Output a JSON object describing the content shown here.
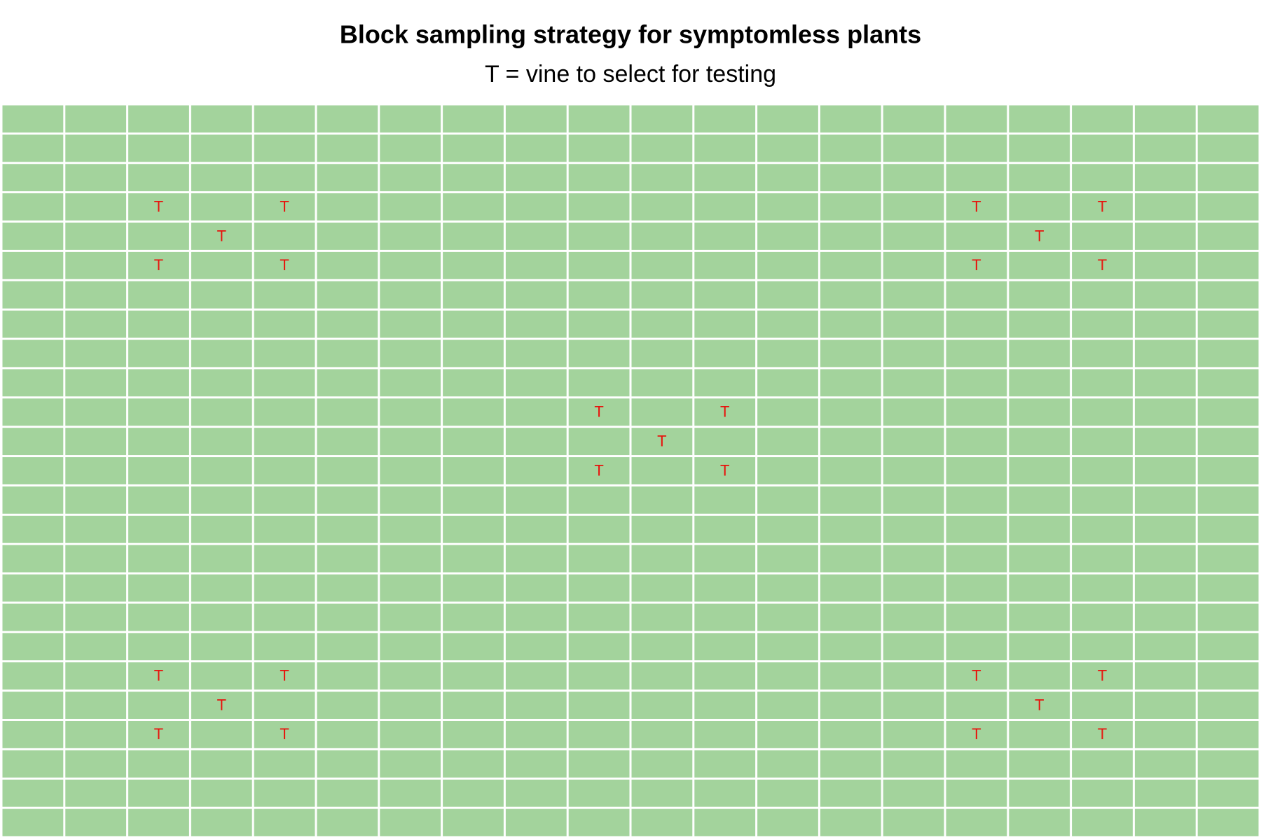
{
  "header": {
    "title": "Block sampling strategy for symptomless plants",
    "subtitle": "T = vine to select for testing"
  },
  "grid": {
    "rows": [
      [
        null,
        null,
        null,
        null,
        null,
        null,
        null,
        null,
        null,
        null,
        null,
        null,
        null,
        null,
        null,
        null,
        null,
        null,
        null,
        null
      ],
      [
        null,
        null,
        null,
        null,
        null,
        null,
        null,
        null,
        null,
        null,
        null,
        null,
        null,
        null,
        null,
        null,
        null,
        null,
        null,
        null
      ],
      [
        null,
        null,
        null,
        null,
        null,
        null,
        null,
        null,
        null,
        null,
        null,
        null,
        null,
        null,
        null,
        null,
        null,
        null,
        null,
        null
      ],
      [
        null,
        null,
        "T",
        null,
        "T",
        null,
        null,
        null,
        null,
        null,
        null,
        null,
        null,
        null,
        null,
        "T",
        null,
        "T",
        null,
        null
      ],
      [
        null,
        null,
        null,
        "T",
        null,
        null,
        null,
        null,
        null,
        null,
        null,
        null,
        null,
        null,
        null,
        null,
        "T",
        null,
        null,
        null
      ],
      [
        null,
        null,
        "T",
        null,
        "T",
        null,
        null,
        null,
        null,
        null,
        null,
        null,
        null,
        null,
        null,
        "T",
        null,
        "T",
        null,
        null
      ],
      [
        null,
        null,
        null,
        null,
        null,
        null,
        null,
        null,
        null,
        null,
        null,
        null,
        null,
        null,
        null,
        null,
        null,
        null,
        null,
        null
      ],
      [
        null,
        null,
        null,
        null,
        null,
        null,
        null,
        null,
        null,
        null,
        null,
        null,
        null,
        null,
        null,
        null,
        null,
        null,
        null,
        null
      ],
      [
        null,
        null,
        null,
        null,
        null,
        null,
        null,
        null,
        null,
        null,
        null,
        null,
        null,
        null,
        null,
        null,
        null,
        null,
        null,
        null
      ],
      [
        null,
        null,
        null,
        null,
        null,
        null,
        null,
        null,
        null,
        null,
        null,
        null,
        null,
        null,
        null,
        null,
        null,
        null,
        null,
        null
      ],
      [
        null,
        null,
        null,
        null,
        null,
        null,
        null,
        null,
        null,
        "T",
        null,
        "T",
        null,
        null,
        null,
        null,
        null,
        null,
        null,
        null
      ],
      [
        null,
        null,
        null,
        null,
        null,
        null,
        null,
        null,
        null,
        null,
        "T",
        null,
        null,
        null,
        null,
        null,
        null,
        null,
        null,
        null
      ],
      [
        null,
        null,
        null,
        null,
        null,
        null,
        null,
        null,
        null,
        "T",
        null,
        "T",
        null,
        null,
        null,
        null,
        null,
        null,
        null,
        null
      ],
      [
        null,
        null,
        null,
        null,
        null,
        null,
        null,
        null,
        null,
        null,
        null,
        null,
        null,
        null,
        null,
        null,
        null,
        null,
        null,
        null
      ],
      [
        null,
        null,
        null,
        null,
        null,
        null,
        null,
        null,
        null,
        null,
        null,
        null,
        null,
        null,
        null,
        null,
        null,
        null,
        null,
        null
      ],
      [
        null,
        null,
        null,
        null,
        null,
        null,
        null,
        null,
        null,
        null,
        null,
        null,
        null,
        null,
        null,
        null,
        null,
        null,
        null,
        null
      ],
      [
        null,
        null,
        null,
        null,
        null,
        null,
        null,
        null,
        null,
        null,
        null,
        null,
        null,
        null,
        null,
        null,
        null,
        null,
        null,
        null
      ],
      [
        null,
        null,
        null,
        null,
        null,
        null,
        null,
        null,
        null,
        null,
        null,
        null,
        null,
        null,
        null,
        null,
        null,
        null,
        null,
        null
      ],
      [
        null,
        null,
        null,
        null,
        null,
        null,
        null,
        null,
        null,
        null,
        null,
        null,
        null,
        null,
        null,
        null,
        null,
        null,
        null,
        null
      ],
      [
        null,
        null,
        "T",
        null,
        "T",
        null,
        null,
        null,
        null,
        null,
        null,
        null,
        null,
        null,
        null,
        "T",
        null,
        "T",
        null,
        null
      ],
      [
        null,
        null,
        null,
        "T",
        null,
        null,
        null,
        null,
        null,
        null,
        null,
        null,
        null,
        null,
        null,
        null,
        "T",
        null,
        null,
        null
      ],
      [
        null,
        null,
        "T",
        null,
        "T",
        null,
        null,
        null,
        null,
        null,
        null,
        null,
        null,
        null,
        null,
        "T",
        null,
        "T",
        null,
        null
      ],
      [
        null,
        null,
        null,
        null,
        null,
        null,
        null,
        null,
        null,
        null,
        null,
        null,
        null,
        null,
        null,
        null,
        null,
        null,
        null,
        null
      ],
      [
        null,
        null,
        null,
        null,
        null,
        null,
        null,
        null,
        null,
        null,
        null,
        null,
        null,
        null,
        null,
        null,
        null,
        null,
        null,
        null
      ],
      [
        null,
        null,
        null,
        null,
        null,
        null,
        null,
        null,
        null,
        null,
        null,
        null,
        null,
        null,
        null,
        null,
        null,
        null,
        null,
        null
      ]
    ]
  }
}
